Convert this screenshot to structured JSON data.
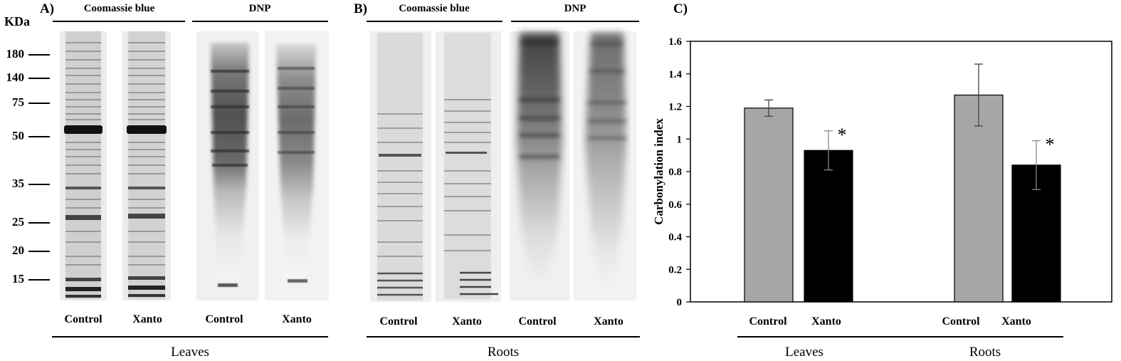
{
  "panel_a": {
    "letter": "A)",
    "mw_unit": "KDa",
    "mw_markers": [
      "180",
      "140",
      "75",
      "50",
      "35",
      "25",
      "20",
      "15"
    ],
    "header_coomassie": "Coomassie blue",
    "header_dnp": "DNP",
    "lanes": [
      "Control",
      "Xanto",
      "Control",
      "Xanto"
    ],
    "group": "Leaves"
  },
  "panel_b": {
    "letter": "B)",
    "header_coomassie": "Coomassie blue",
    "header_dnp": "DNP",
    "lanes": [
      "Control",
      "Xanto",
      "Control",
      "Xanto"
    ],
    "group": "Roots"
  },
  "panel_c": {
    "letter": "C)",
    "categories": [
      "Control",
      "Xanto",
      "Control",
      "Xanto"
    ],
    "groups": [
      "Leaves",
      "Roots"
    ],
    "significance_marker": "*"
  },
  "chart_data": {
    "type": "bar",
    "ylabel": "Carbonylation index",
    "ylim": [
      0,
      1.6
    ],
    "yticks": [
      "0",
      "0.2",
      "0.4",
      "0.6",
      "0.8",
      "1",
      "1.2",
      "1.4",
      "1.6"
    ],
    "groups": [
      "Leaves",
      "Roots"
    ],
    "categories": [
      "Control",
      "Xanto"
    ],
    "series_colors": {
      "Control": "#a6a6a6",
      "Xanto": "#000000"
    },
    "values": [
      {
        "group": "Leaves",
        "category": "Control",
        "value": 1.19,
        "error": 0.05,
        "significant": false
      },
      {
        "group": "Leaves",
        "category": "Xanto",
        "value": 0.93,
        "error": 0.12,
        "significant": true
      },
      {
        "group": "Roots",
        "category": "Control",
        "value": 1.27,
        "error": 0.19,
        "significant": false
      },
      {
        "group": "Roots",
        "category": "Xanto",
        "value": 0.84,
        "error": 0.15,
        "significant": true
      }
    ],
    "grid": false,
    "legend": "none"
  }
}
